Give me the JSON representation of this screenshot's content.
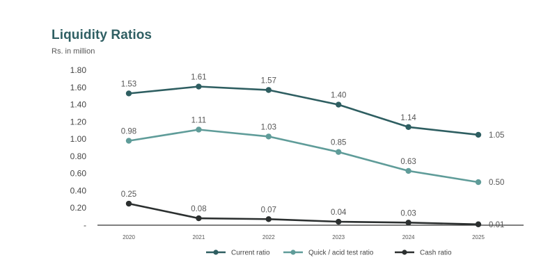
{
  "header": {
    "title": "Liquidity Ratios",
    "subtitle": "Rs. in million"
  },
  "chart_data": {
    "type": "line",
    "title": "Liquidity Ratios",
    "subtitle": "Rs. in million",
    "x": [
      "2020",
      "2021",
      "2022",
      "2023",
      "2024",
      "2025"
    ],
    "y_ticks": [
      "-",
      "0.20",
      "0.40",
      "0.60",
      "0.80",
      "1.00",
      "1.20",
      "1.40",
      "1.60",
      "1.80"
    ],
    "ylim": [
      0,
      1.8
    ],
    "grid": false,
    "legend_position": "bottom",
    "series": [
      {
        "name": "Current ratio",
        "values": [
          1.53,
          1.61,
          1.57,
          1.4,
          1.14,
          1.05
        ],
        "labels": [
          "1.53",
          "1.61",
          "1.57",
          "1.40",
          "1.14",
          "1.05"
        ],
        "color": "#2e5e61"
      },
      {
        "name": "Quick / acid test ratio",
        "values": [
          0.98,
          1.11,
          1.03,
          0.85,
          0.63,
          0.5
        ],
        "labels": [
          "0.98",
          "1.11",
          "1.03",
          "0.85",
          "0.63",
          "0.50"
        ],
        "color": "#5f9c99"
      },
      {
        "name": "Cash ratio",
        "values": [
          0.25,
          0.08,
          0.07,
          0.04,
          0.03,
          0.01
        ],
        "labels": [
          "0.25",
          "0.08",
          "0.07",
          "0.04",
          "0.03",
          "0.01"
        ],
        "color": "#2b2f2f"
      }
    ]
  }
}
